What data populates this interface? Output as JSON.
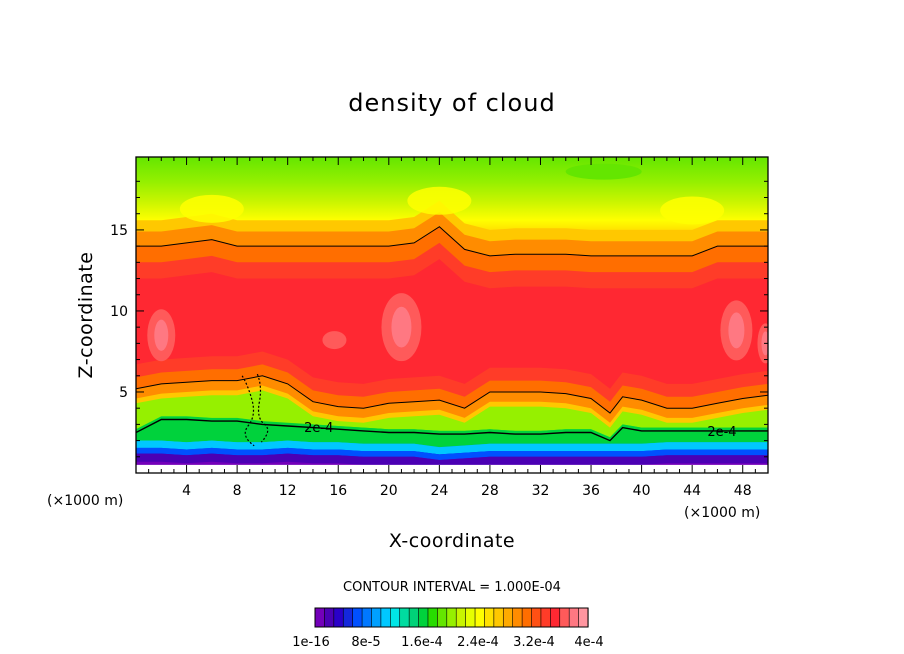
{
  "chart_data": {
    "type": "contour",
    "title": "density of cloud",
    "xlabel": "X-coordinate",
    "ylabel": "Z-coordinate",
    "x_unit": "(×1000 m)",
    "x_unit_right": "(×1000 m)",
    "xlim": [
      0,
      50
    ],
    "ylim": [
      0,
      19.5
    ],
    "x_ticks": [
      "4",
      "8",
      "12",
      "16",
      "20",
      "24",
      "28",
      "32",
      "36",
      "40",
      "44",
      "48"
    ],
    "y_ticks": [
      "5",
      "10",
      "15"
    ],
    "contour_interval_text": "CONTOUR INTERVAL = 1.000E-04",
    "contour_line_label": "2e-4",
    "colorbar_labels": [
      "1e-16",
      "8e-5",
      "1.6e-4",
      "2.4e-4",
      "3.2e-4",
      "4e-4"
    ],
    "colorbar_colors": [
      "#7300b9",
      "#4b00b4",
      "#2a00c8",
      "#1428dc",
      "#0050ff",
      "#0078ff",
      "#00a0ff",
      "#00c8ff",
      "#00e6e6",
      "#00dca0",
      "#00d278",
      "#00d23c",
      "#28dc00",
      "#64e600",
      "#96f000",
      "#c8f500",
      "#e6ff00",
      "#ffff00",
      "#ffe100",
      "#ffc800",
      "#ffaa00",
      "#ff8c00",
      "#ff6e00",
      "#ff5014",
      "#ff3c28",
      "#ff2832",
      "#ff5a5a",
      "#ff7882",
      "#ff96a0"
    ],
    "profile_x": [
      0,
      2,
      4,
      6,
      8,
      10,
      12,
      14,
      16,
      18,
      20,
      22,
      24,
      26,
      28,
      30,
      32,
      34,
      36,
      37.5,
      38.5,
      40,
      42,
      44,
      46,
      48,
      50
    ],
    "level_2e4_top_z": [
      14.0,
      14.0,
      14.2,
      14.4,
      14.0,
      14.0,
      14.0,
      14.0,
      14.0,
      14.0,
      14.0,
      14.2,
      15.2,
      13.8,
      13.4,
      13.5,
      13.5,
      13.5,
      13.4,
      13.4,
      13.4,
      13.4,
      13.4,
      13.4,
      14.0,
      14.0,
      14.0
    ],
    "level_2e4_bottom_z": [
      5.2,
      5.5,
      5.6,
      5.7,
      5.7,
      6.0,
      5.5,
      4.4,
      4.1,
      4.0,
      4.3,
      4.4,
      4.5,
      4.0,
      5.0,
      5.0,
      5.0,
      4.9,
      4.6,
      3.7,
      4.7,
      4.5,
      4.0,
      4.0,
      4.3,
      4.6,
      4.8
    ],
    "level_2e4_low_z": [
      2.5,
      3.3,
      3.3,
      3.2,
      3.2,
      3.0,
      2.9,
      2.8,
      2.7,
      2.6,
      2.5,
      2.5,
      2.4,
      2.4,
      2.5,
      2.4,
      2.4,
      2.5,
      2.5,
      2.0,
      2.8,
      2.6,
      2.6,
      2.6,
      2.6,
      2.6,
      2.6
    ],
    "cloud_base_z": [
      1.2,
      1.2,
      1.1,
      1.2,
      1.1,
      1.1,
      1.2,
      1.1,
      1.1,
      1.0,
      1.0,
      1.0,
      0.8,
      0.9,
      1.0,
      1.0,
      1.0,
      1.0,
      1.0,
      1.0,
      1.0,
      1.0,
      1.1,
      1.1,
      1.1,
      1.1,
      1.1
    ]
  }
}
